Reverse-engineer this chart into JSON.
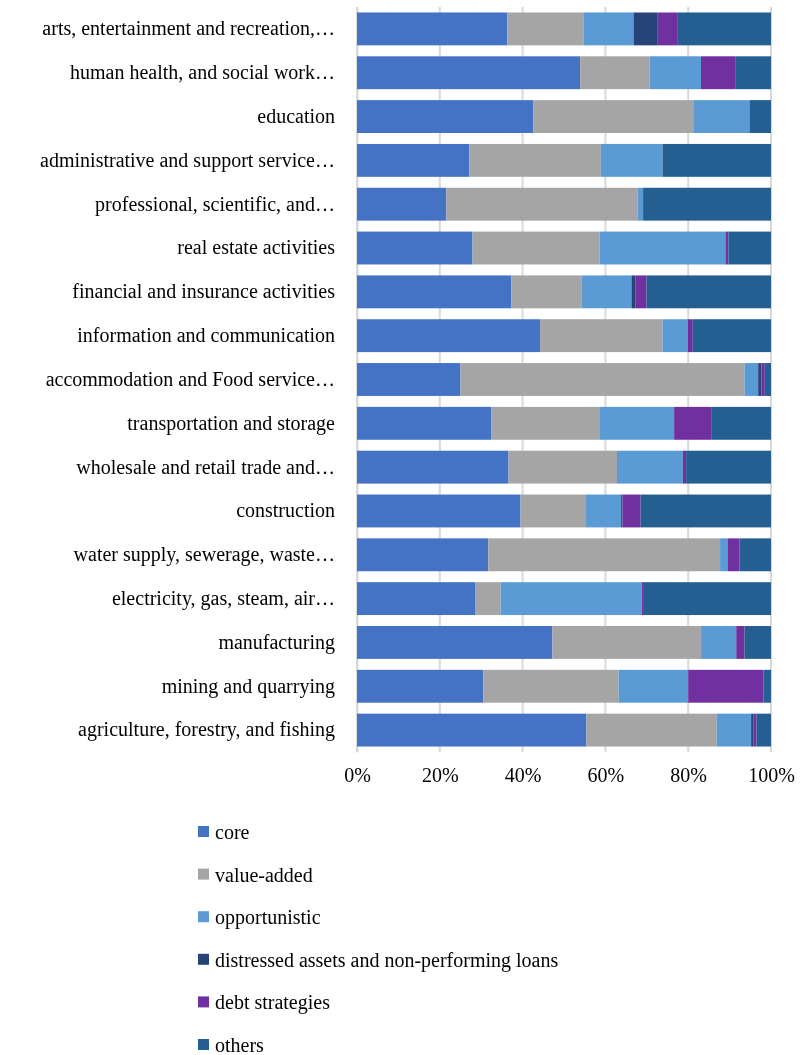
{
  "chart_data": {
    "type": "bar",
    "orientation": "horizontal",
    "stacked": true,
    "categories": [
      "arts, entertainment and recreation,…",
      "human health, and social work…",
      "education",
      "administrative and support service…",
      "professional, scientific, and…",
      "real estate activities",
      "financial and insurance activities",
      "information and communication",
      "accommodation and Food service…",
      "transportation and storage",
      "wholesale and retail trade and…",
      "construction",
      "water supply, sewerage, waste…",
      "electricity, gas, steam, air…",
      "manufacturing",
      "mining and quarrying",
      "agriculture, forestry, and fishing"
    ],
    "series": [
      {
        "name": "core",
        "color": "#4472c4",
        "values": [
          36.3,
          53.9,
          42.6,
          27.1,
          21.6,
          27.9,
          37.3,
          44.2,
          25.0,
          32.5,
          36.6,
          39.5,
          31.7,
          28.5,
          47.2,
          30.5,
          55.4
        ]
      },
      {
        "name": "value-added",
        "color": "#a5a5a5",
        "values": [
          18.5,
          16.8,
          38.8,
          31.8,
          46.2,
          30.7,
          17.0,
          29.6,
          68.6,
          26.2,
          26.2,
          15.8,
          56.0,
          6.2,
          35.9,
          32.7,
          31.5
        ]
      },
      {
        "name": "opportunistic",
        "color": "#5b9bd5",
        "values": [
          12.0,
          12.4,
          13.4,
          14.9,
          1.3,
          30.4,
          12.0,
          6.1,
          3.3,
          17.9,
          15.9,
          8.5,
          1.8,
          34.1,
          8.5,
          16.8,
          8.3
        ]
      },
      {
        "name": "distressed assets and non-performing loans",
        "color": "#264478",
        "values": [
          5.7,
          0,
          0,
          0,
          0,
          0,
          1.0,
          0,
          0.8,
          0,
          0,
          0.3,
          0,
          0,
          0,
          0,
          0.6
        ]
      },
      {
        "name": "debt strategies",
        "color": "#7030a0",
        "values": [
          5.0,
          8.4,
          0,
          0,
          0,
          0.7,
          2.6,
          1.2,
          0.8,
          9.1,
          0.8,
          4.4,
          2.9,
          0.3,
          2.0,
          18.2,
          0.7
        ]
      },
      {
        "name": "others",
        "color": "#255e91",
        "values": [
          22.5,
          8.5,
          5.2,
          26.2,
          30.9,
          10.3,
          30.1,
          18.9,
          1.5,
          14.3,
          20.5,
          31.5,
          7.6,
          30.9,
          6.4,
          1.8,
          3.5
        ]
      }
    ],
    "xlim": [
      0,
      100
    ],
    "xticks": [
      {
        "value": 0,
        "label": "0%"
      },
      {
        "value": 20,
        "label": "20%"
      },
      {
        "value": 40,
        "label": "40%"
      },
      {
        "value": 60,
        "label": "60%"
      },
      {
        "value": 80,
        "label": "80%"
      },
      {
        "value": 100,
        "label": "100%"
      }
    ],
    "grid": "x",
    "legend": "bottom"
  }
}
